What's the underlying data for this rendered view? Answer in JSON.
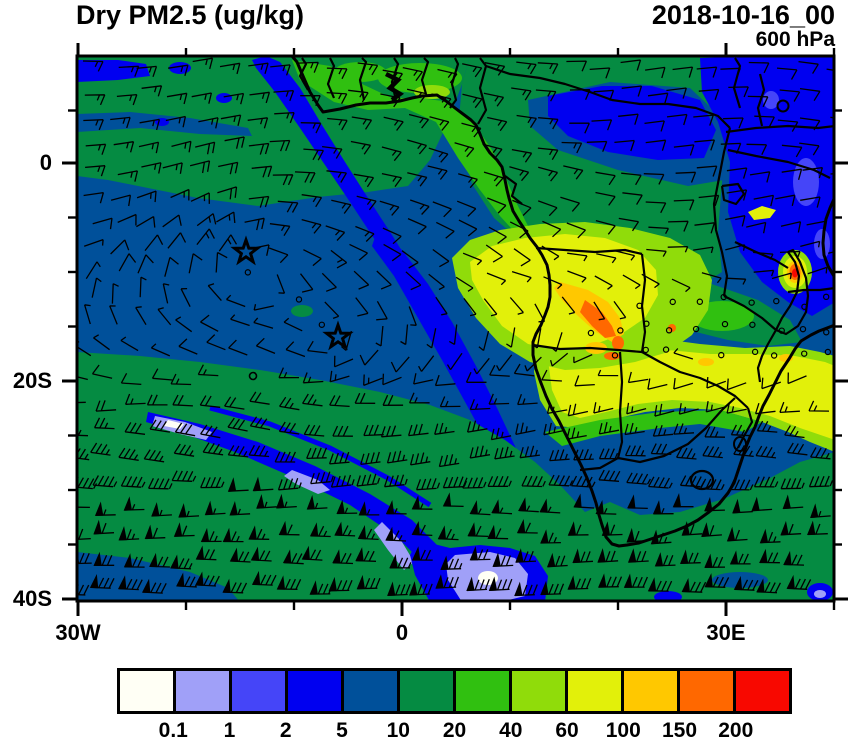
{
  "header": {
    "title": "Dry PM2.5 (ug/kg)",
    "datetime": "2018-10-16_00",
    "level": "600 hPa"
  },
  "axes": {
    "y_tick_labels": [
      "0",
      "20S",
      "40S"
    ],
    "x_tick_labels": [
      "30W",
      "0",
      "30E"
    ]
  },
  "colorbar": {
    "values": [
      "0.1",
      "1",
      "2",
      "5",
      "10",
      "20",
      "40",
      "60",
      "100",
      "150",
      "200"
    ],
    "colors": [
      "#FFFFF5",
      "#A0A0F8",
      "#4545F8",
      "#0000F0",
      "#00509A",
      "#058B42",
      "#30C010",
      "#90DC0A",
      "#E2F00A",
      "#FFC800",
      "#FF6800",
      "#F80800"
    ]
  },
  "chart_data": {
    "type": "heatmap",
    "title": "Dry PM2.5 (ug/kg)",
    "valid_time": "2018-10-16_00",
    "pressure_level": "600 hPa",
    "units": "ug/kg",
    "x_axis": {
      "labeled_ticks": [
        "30W",
        "0",
        "30E"
      ],
      "minor_tick_interval_deg": 10,
      "range": [
        "30W",
        "40E"
      ]
    },
    "y_axis": {
      "labeled_ticks": [
        "0",
        "20S",
        "40S"
      ],
      "minor_tick_interval_deg": 5,
      "range": [
        "10N",
        "40S"
      ]
    },
    "contour_levels": [
      0.1,
      1,
      2,
      5,
      10,
      20,
      40,
      60,
      100,
      150,
      200
    ],
    "level_colors": [
      "#FFFFF5",
      "#A0A0F8",
      "#4545F8",
      "#0000F0",
      "#00509A",
      "#058B42",
      "#30C010",
      "#90DC0A",
      "#E2F00A",
      "#FFC800",
      "#FF6800",
      "#F80800"
    ],
    "legend_position": "bottom",
    "grid": false,
    "overlays": [
      "wind barbs with pennants in southern westerlies",
      "African coastline",
      "country borders",
      "two star markers over the South Atlantic",
      "calm wind circle near 8W 20S"
    ],
    "star_markers": [
      {
        "approx_lon": "14W",
        "approx_lat": "8S"
      },
      {
        "approx_lon": "6W",
        "approx_lat": "16S"
      }
    ],
    "notable_features": [
      {
        "region": "Angola / Zambia plateau plume",
        "approx_value": "60-150"
      },
      {
        "region": "hotspot near Lake Malawi / N Mozambique",
        "approx_value": "150-200"
      },
      {
        "region": "Namibia-Botswana-Zimbabwe band to right edge",
        "approx_value": "60-100"
      },
      {
        "region": "South Atlantic ocean background",
        "approx_value": "5-20"
      },
      {
        "region": "clean diagonal streaks SW Atlantic and S of Cape",
        "approx_value": "0.1-2"
      },
      {
        "region": "East Africa Kenya/Tanzania airmass",
        "approx_value": "2-5"
      },
      {
        "region": "Congo basin band",
        "approx_value": "2-10"
      }
    ]
  }
}
